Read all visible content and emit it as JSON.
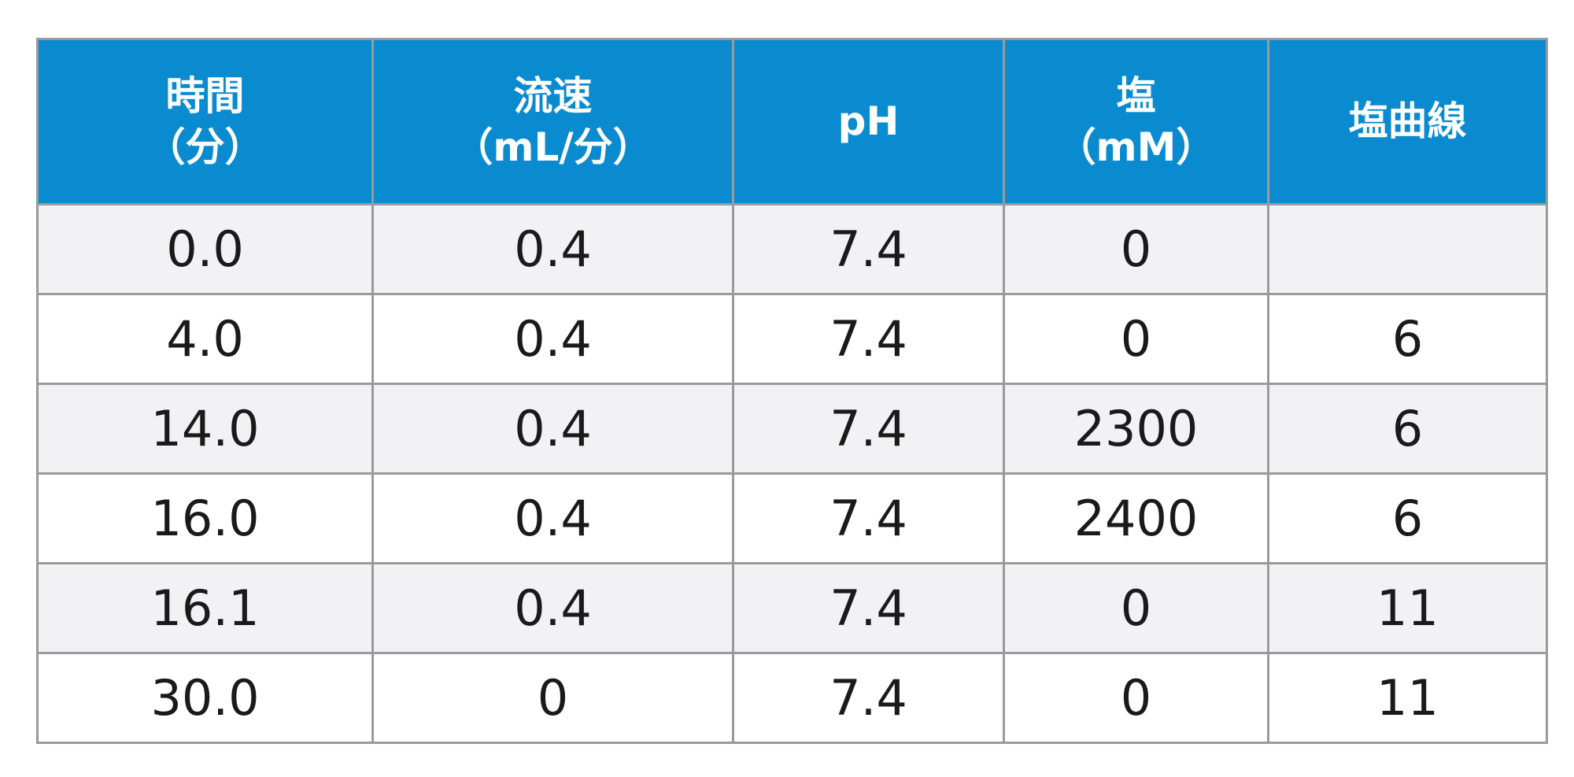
{
  "table": {
    "header": [
      [
        "時間",
        "（分）"
      ],
      [
        "流速",
        "（mL/分）"
      ],
      [
        "pH"
      ],
      [
        "塩",
        "（mM）"
      ],
      [
        "塩曲線"
      ]
    ],
    "rows": [
      [
        "0.0",
        "0.4",
        "7.4",
        "0",
        null
      ],
      [
        "4.0",
        "0.4",
        "7.4",
        "0",
        "6"
      ],
      [
        "14.0",
        "0.4",
        "7.4",
        "2300",
        "6"
      ],
      [
        "16.0",
        "0.4",
        "7.4",
        "2400",
        "6"
      ],
      [
        "16.1",
        "0.4",
        "7.4",
        "0",
        "11"
      ],
      [
        "30.0",
        "0",
        "7.4",
        "0",
        "11"
      ]
    ]
  }
}
